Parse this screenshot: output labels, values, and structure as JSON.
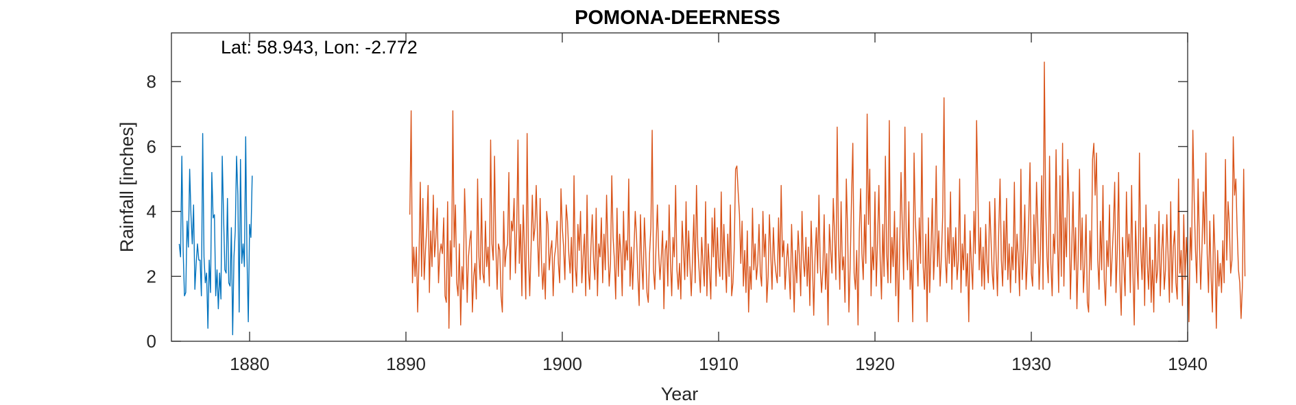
{
  "chart_data": {
    "type": "line",
    "title": "POMONA-DEERNESS",
    "annotation": "Lat: 58.943, Lon: -2.772",
    "xlabel": "Year",
    "ylabel": "Rainfall [inches]",
    "xlim": [
      1875,
      1940
    ],
    "ylim": [
      0,
      9.5
    ],
    "xticks": [
      1880,
      1890,
      1900,
      1910,
      1920,
      1930,
      1940
    ],
    "yticks": [
      0,
      2,
      4,
      6,
      8
    ],
    "grid": false,
    "box": true,
    "series": [
      {
        "color": "#0072BD",
        "x_start": 1875.5,
        "x_step": 0.08333,
        "values": [
          3.0,
          2.6,
          5.7,
          2.8,
          1.4,
          1.5,
          3.7,
          2.9,
          5.3,
          3.9,
          3.0,
          4.2,
          1.6,
          2.4,
          3.0,
          2.5,
          2.5,
          1.4,
          6.4,
          2.6,
          1.8,
          2.1,
          0.4,
          2.5,
          1.5,
          5.2,
          3.8,
          3.9,
          1.4,
          2.2,
          1.0,
          2.1,
          1.3,
          5.7,
          3.9,
          2.2,
          2.1,
          4.4,
          1.8,
          1.7,
          3.5,
          0.2,
          2.6,
          3.4,
          5.7,
          4.5,
          0.9,
          5.6,
          2.4,
          3.0,
          2.3,
          6.3,
          2.6,
          0.6,
          3.6,
          3.2,
          5.1
        ]
      },
      {
        "color": "#D95319",
        "x_start": 1890.25,
        "x_step": 0.08333,
        "values": [
          3.9,
          7.1,
          1.8,
          2.9,
          2.0,
          2.9,
          0.9,
          2.5,
          4.9,
          2.0,
          4.4,
          1.9,
          2.8,
          3.5,
          4.8,
          1.5,
          3.4,
          2.3,
          4.5,
          2.6,
          3.2,
          4.1,
          1.8,
          2.7,
          3.0,
          2.7,
          3.8,
          1.4,
          1.2,
          4.3,
          0.4,
          3.1,
          2.0,
          7.1,
          2.9,
          4.2,
          1.8,
          1.4,
          3.0,
          0.5,
          2.3,
          1.6,
          4.7,
          3.4,
          1.2,
          2.6,
          3.1,
          3.4,
          0.9,
          2.0,
          2.4,
          1.3,
          5.0,
          2.6,
          1.9,
          4.4,
          2.1,
          1.8,
          3.7,
          2.3,
          2.9,
          1.7,
          6.2,
          3.0,
          2.5,
          5.7,
          2.9,
          1.6,
          3.0,
          2.8,
          1.4,
          0.9,
          4.0,
          2.3,
          2.8,
          3.0,
          5.2,
          1.9,
          3.7,
          3.4,
          4.4,
          2.1,
          3.4,
          6.2,
          2.4,
          3.6,
          1.4,
          4.2,
          2.8,
          1.3,
          6.4,
          2.7,
          1.4,
          2.8,
          4.5,
          3.1,
          3.5,
          4.8,
          3.2,
          2.0,
          4.4,
          2.5,
          1.6,
          2.4,
          1.3,
          4.0,
          3.6,
          2.2,
          2.8,
          3.1,
          1.4,
          2.6,
          2.9,
          3.7,
          2.4,
          1.8,
          4.7,
          3.5,
          2.9,
          1.9,
          4.2,
          3.7,
          2.7,
          2.1,
          3.2,
          1.5,
          5.1,
          2.3,
          1.7,
          3.6,
          2.8,
          4.0,
          1.8,
          2.6,
          3.3,
          1.4,
          4.5,
          2.2,
          1.6,
          2.9,
          3.9,
          2.5,
          1.9,
          4.1,
          1.4,
          3.0,
          2.6,
          3.8,
          1.8,
          3.3,
          2.2,
          4.5,
          2.9,
          1.7,
          2.4,
          5.1,
          3.2,
          2.5,
          1.3,
          4.1,
          2.0,
          3.3,
          2.7,
          1.4,
          4.0,
          2.2,
          3.1,
          2.5,
          5.0,
          1.7,
          2.9,
          1.6,
          2.8,
          4.0,
          3.2,
          2.0,
          1.1,
          3.9,
          2.4,
          1.6,
          3.8,
          2.8,
          1.5,
          1.2,
          2.7,
          3.5,
          6.5,
          2.2,
          1.6,
          3.0,
          4.2,
          2.7,
          1.9,
          2.6,
          3.4,
          1.0,
          2.8,
          3.1,
          1.7,
          4.2,
          2.5,
          1.4,
          3.2,
          2.6,
          4.8,
          2.2,
          1.6,
          2.4,
          1.3,
          3.7,
          2.8,
          1.9,
          4.3,
          2.0,
          3.4,
          2.3,
          1.4,
          2.6,
          3.9,
          1.8,
          4.8,
          2.9,
          2.2,
          1.5,
          3.2,
          2.4,
          1.7,
          4.3,
          1.4,
          3.0,
          2.2,
          1.3,
          3.8,
          2.6,
          4.1,
          1.7,
          3.5,
          2.3,
          2.0,
          4.6,
          1.9,
          3.6,
          2.5,
          1.5,
          3.3,
          2.0,
          4.2,
          1.4,
          1.8,
          2.9,
          5.3,
          5.4,
          4.6,
          3.9,
          2.4,
          3.7,
          1.7,
          2.8,
          1.5,
          3.4,
          0.9,
          2.3,
          1.6,
          4.1,
          2.2,
          3.0,
          1.9,
          2.4,
          3.6,
          2.1,
          1.7,
          4.0,
          2.6,
          3.3,
          1.2,
          2.0,
          3.9,
          2.7,
          1.6,
          3.5,
          2.5,
          2.1,
          1.8,
          3.8,
          2.0,
          4.8,
          2.6,
          3.1,
          1.6,
          2.4,
          3.0,
          2.2,
          1.3,
          3.6,
          2.3,
          0.9,
          2.8,
          1.8,
          3.4,
          2.6,
          1.4,
          4.0,
          2.5,
          2.0,
          3.2,
          1.7,
          2.9,
          1.1,
          3.7,
          2.4,
          0.8,
          2.6,
          3.5,
          2.1,
          4.5,
          2.3,
          1.5,
          2.2,
          3.9,
          1.6,
          2.7,
          0.5,
          3.6,
          2.8,
          2.1,
          4.4,
          3.3,
          1.9,
          6.6,
          3.0,
          1.6,
          4.3,
          2.2,
          2.6,
          1.2,
          5.0,
          3.4,
          0.9,
          2.4,
          4.4,
          6.1,
          2.1,
          1.6,
          2.8,
          0.5,
          3.4,
          4.7,
          2.7,
          1.9,
          3.9,
          2.4,
          7.0,
          3.6,
          5.3,
          1.4,
          2.9,
          2.2,
          4.6,
          1.7,
          3.1,
          4.8,
          2.5,
          1.3,
          3.6,
          2.0,
          5.7,
          2.7,
          1.8,
          6.8,
          1.8,
          3.2,
          2.3,
          4.0,
          1.4,
          3.5,
          0.6,
          2.9,
          5.2,
          3.5,
          1.9,
          6.6,
          3.2,
          2.2,
          4.3,
          1.6,
          2.5,
          0.6,
          5.8,
          3.7,
          2.9,
          1.7,
          3.8,
          2.4,
          6.4,
          2.3,
          1.6,
          3.3,
          0.6,
          3.8,
          1.5,
          2.8,
          4.4,
          1.9,
          2.9,
          5.4,
          2.3,
          3.4,
          1.7,
          2.6,
          3.9,
          7.5,
          2.6,
          1.8,
          3.5,
          2.4,
          4.6,
          1.6,
          3.2,
          2.3,
          3.5,
          1.9,
          2.5,
          5.0,
          1.5,
          3.0,
          2.2,
          3.9,
          1.7,
          2.7,
          0.6,
          3.4,
          2.4,
          1.6,
          4.0,
          2.7,
          6.8,
          4.6,
          2.2,
          3.5,
          1.7,
          2.9,
          1.6,
          3.6,
          2.4,
          1.8,
          4.3,
          3.2,
          2.1,
          1.6,
          4.4,
          2.6,
          1.4,
          3.4,
          5.0,
          2.5,
          1.7,
          3.7,
          2.2,
          4.4,
          1.9,
          3.0,
          1.5,
          2.9,
          2.2,
          4.9,
          1.8,
          3.3,
          2.6,
          1.4,
          5.3,
          1.9,
          2.8,
          4.2,
          1.6,
          2.5,
          3.7,
          5.5,
          2.1,
          1.7,
          3.9,
          2.4,
          4.9,
          3.5,
          1.6,
          2.8,
          5.1,
          1.6,
          8.6,
          4.2,
          2.6,
          1.8,
          5.7,
          2.4,
          1.4,
          3.3,
          2.7,
          5.9,
          3.2,
          1.5,
          5.1,
          2.0,
          6.1,
          1.7,
          3.8,
          2.6,
          5.6,
          4.2,
          1.3,
          2.8,
          4.6,
          2.2,
          3.5,
          1.0,
          2.7,
          5.3,
          2.2,
          3.8,
          1.5,
          2.4,
          3.9,
          1.2,
          0.9,
          3.4,
          2.2,
          5.6,
          6.1,
          4.5,
          5.8,
          2.5,
          1.6,
          3.7,
          2.2,
          4.8,
          1.9,
          1.1,
          3.1,
          2.3,
          4.2,
          1.7,
          2.6,
          3.5,
          4.9,
          1.5,
          2.8,
          5.2,
          1.9,
          0.8,
          3.2,
          2.3,
          1.4,
          4.6,
          2.6,
          3.3,
          1.5,
          4.8,
          2.1,
          0.5,
          3.7,
          2.4,
          1.6,
          5.8,
          2.8,
          1.9,
          3.5,
          1.1,
          4.2,
          2.4,
          1.6,
          3.2,
          1.2,
          2.5,
          0.9,
          3.6,
          1.8,
          2.2,
          4.0,
          1.4,
          2.7,
          3.6,
          1.6,
          2.2,
          3.9,
          2.6,
          1.2,
          4.3,
          1.5,
          2.9,
          3.4,
          1.8,
          1.3,
          5.0,
          2.1,
          2.8,
          1.1,
          3.9,
          1.9,
          3.2,
          2.2,
          0.6,
          3.5,
          2.5,
          6.5,
          4.4,
          2.8,
          1.8,
          5.0,
          3.1,
          1.6,
          2.9,
          4.6,
          3.0,
          5.8,
          2.7,
          1.5,
          3.7,
          2.0,
          0.9,
          3.9,
          2.7,
          0.4,
          2.8,
          1.7,
          2.4,
          1.5,
          3.1,
          1.8,
          5.6,
          2.5,
          4.3,
          3.6,
          2.1,
          2.5,
          6.3,
          4.5,
          5.0,
          3.4,
          2.2,
          1.8,
          0.7,
          1.7,
          5.3,
          2.0
        ]
      }
    ]
  }
}
